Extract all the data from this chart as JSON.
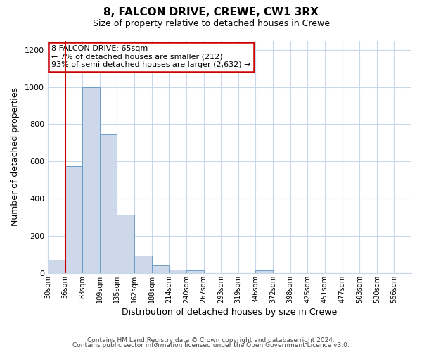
{
  "title": "8, FALCON DRIVE, CREWE, CW1 3RX",
  "subtitle": "Size of property relative to detached houses in Crewe",
  "xlabel": "Distribution of detached houses by size in Crewe",
  "ylabel": "Number of detached properties",
  "bar_color": "#cdd9ea",
  "bar_edge_color": "#6b9ec8",
  "background_color": "#ffffff",
  "grid_color": "#c8d8e8",
  "bin_labels": [
    "30sqm",
    "56sqm",
    "83sqm",
    "109sqm",
    "135sqm",
    "162sqm",
    "188sqm",
    "214sqm",
    "240sqm",
    "267sqm",
    "293sqm",
    "319sqm",
    "346sqm",
    "372sqm",
    "398sqm",
    "425sqm",
    "451sqm",
    "477sqm",
    "503sqm",
    "530sqm",
    "556sqm"
  ],
  "bar_values": [
    70,
    575,
    1000,
    745,
    315,
    95,
    40,
    20,
    15,
    0,
    0,
    0,
    15,
    0,
    0,
    0,
    0,
    0,
    0,
    0,
    0
  ],
  "property_vline_x": 1.0,
  "annotation_title": "8 FALCON DRIVE: 65sqm",
  "annotation_line1": "← 7% of detached houses are smaller (212)",
  "annotation_line2": "93% of semi-detached houses are larger (2,632) →",
  "annotation_box_color": "#ffffff",
  "annotation_box_edge_color": "#cc0000",
  "property_vline_color": "#cc0000",
  "ylim": [
    0,
    1250
  ],
  "yticks": [
    0,
    200,
    400,
    600,
    800,
    1000,
    1200
  ],
  "footnote1": "Contains HM Land Registry data © Crown copyright and database right 2024.",
  "footnote2": "Contains public sector information licensed under the Open Government Licence v3.0."
}
